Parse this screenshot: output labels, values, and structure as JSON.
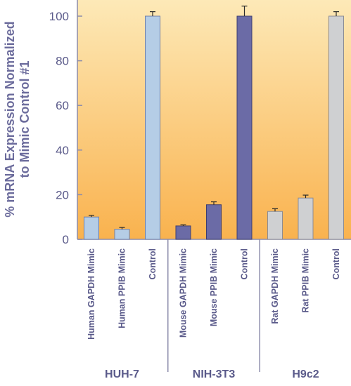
{
  "chart_data": {
    "type": "bar",
    "title": "",
    "xlabel": "",
    "ylabel": "% mRNA Expression Normalized to Mimic Control #1",
    "ylabel_lines": [
      "% mRNA Expression Normalized",
      "to Mimic Control #1"
    ],
    "ylim": [
      0,
      100
    ],
    "yticks": [
      0,
      20,
      40,
      60,
      80,
      100
    ],
    "grid": false,
    "categories": [
      "Human GAPDH Mimic",
      "Human PPIB Mimic",
      "Control",
      "Mouse GAPDH Mimic",
      "Mouse PPIB Mimic",
      "Control",
      "Rat GAPDH Mimic",
      "Rat PPIB  Mimic",
      "Control"
    ],
    "values": [
      10,
      4.5,
      100,
      6,
      15.5,
      100,
      12.5,
      18.5,
      100
    ],
    "errors": [
      0.7,
      0.8,
      2,
      0.5,
      1.3,
      4.5,
      1.2,
      1.3,
      2
    ],
    "bar_groups": [
      0,
      0,
      0,
      1,
      1,
      1,
      2,
      2,
      2
    ],
    "groups": [
      "HUH-7",
      "NIH-3T3",
      "H9c2"
    ],
    "colors": {
      "group_fill": [
        "#b5cde6",
        "#6b6ba6",
        "#cfd0d2"
      ],
      "group_stroke": [
        "#6f7fa8",
        "#3e3e70",
        "#8c8c94"
      ],
      "background_top": "#fde9b7",
      "background_bottom": "#f9b24e",
      "axis_text": "#5a5a8a",
      "axis_line": "#8c8cab"
    }
  }
}
